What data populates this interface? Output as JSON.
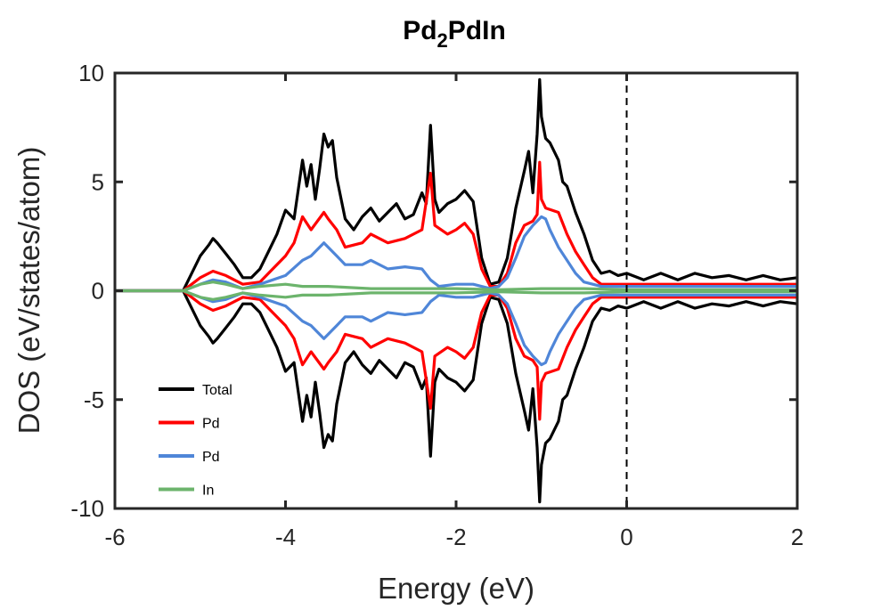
{
  "chart_data": {
    "type": "line",
    "title": {
      "main": "Pd",
      "subscript": "2",
      "suffix": "PdIn"
    },
    "xlabel": "Energy (eV)",
    "ylabel": "DOS (eV/states/atom)",
    "xlim": [
      -6,
      2
    ],
    "ylim": [
      -10,
      10
    ],
    "xticks": [
      -6,
      -4,
      -2,
      0,
      2
    ],
    "xtick_labels": [
      "-6",
      "-4",
      "-2",
      "0",
      "2"
    ],
    "yticks": [
      -10,
      -5,
      0,
      5,
      10
    ],
    "ytick_labels": [
      "-10",
      "-5",
      "0",
      "5",
      "10"
    ],
    "grid": false,
    "legend_position": "bottom-left",
    "reference_line": {
      "x": 0,
      "style": "dashed"
    },
    "mirrored": true,
    "series": [
      {
        "name": "Total",
        "color": "#000000",
        "points": [
          [
            -6.0,
            0.0
          ],
          [
            -5.2,
            0.0
          ],
          [
            -5.1,
            0.8
          ],
          [
            -5.0,
            1.6
          ],
          [
            -4.9,
            2.1
          ],
          [
            -4.85,
            2.4
          ],
          [
            -4.8,
            2.2
          ],
          [
            -4.7,
            1.7
          ],
          [
            -4.6,
            1.2
          ],
          [
            -4.5,
            0.6
          ],
          [
            -4.4,
            0.6
          ],
          [
            -4.3,
            1.0
          ],
          [
            -4.2,
            1.8
          ],
          [
            -4.1,
            2.6
          ],
          [
            -4.0,
            3.7
          ],
          [
            -3.9,
            3.3
          ],
          [
            -3.8,
            6.0
          ],
          [
            -3.75,
            4.8
          ],
          [
            -3.7,
            5.8
          ],
          [
            -3.65,
            4.2
          ],
          [
            -3.6,
            5.6
          ],
          [
            -3.55,
            7.2
          ],
          [
            -3.5,
            6.6
          ],
          [
            -3.45,
            6.9
          ],
          [
            -3.4,
            5.2
          ],
          [
            -3.3,
            3.3
          ],
          [
            -3.2,
            2.8
          ],
          [
            -3.1,
            3.4
          ],
          [
            -3.0,
            3.8
          ],
          [
            -2.9,
            3.2
          ],
          [
            -2.8,
            3.6
          ],
          [
            -2.7,
            4.0
          ],
          [
            -2.6,
            3.3
          ],
          [
            -2.5,
            3.5
          ],
          [
            -2.4,
            4.5
          ],
          [
            -2.35,
            4.0
          ],
          [
            -2.3,
            7.6
          ],
          [
            -2.25,
            4.2
          ],
          [
            -2.2,
            3.6
          ],
          [
            -2.1,
            4.0
          ],
          [
            -2.0,
            4.2
          ],
          [
            -1.9,
            4.6
          ],
          [
            -1.8,
            4.1
          ],
          [
            -1.7,
            1.5
          ],
          [
            -1.6,
            0.3
          ],
          [
            -1.5,
            0.4
          ],
          [
            -1.4,
            1.5
          ],
          [
            -1.3,
            3.8
          ],
          [
            -1.2,
            5.5
          ],
          [
            -1.15,
            6.4
          ],
          [
            -1.1,
            4.5
          ],
          [
            -1.05,
            7.2
          ],
          [
            -1.02,
            9.7
          ],
          [
            -1.0,
            8.0
          ],
          [
            -0.95,
            7.0
          ],
          [
            -0.9,
            6.8
          ],
          [
            -0.8,
            6.0
          ],
          [
            -0.75,
            5.0
          ],
          [
            -0.7,
            4.8
          ],
          [
            -0.6,
            3.6
          ],
          [
            -0.5,
            2.6
          ],
          [
            -0.4,
            1.4
          ],
          [
            -0.3,
            0.8
          ],
          [
            -0.2,
            0.9
          ],
          [
            -0.1,
            0.7
          ],
          [
            0.0,
            0.8
          ],
          [
            0.2,
            0.5
          ],
          [
            0.4,
            0.8
          ],
          [
            0.6,
            0.5
          ],
          [
            0.8,
            0.8
          ],
          [
            1.0,
            0.6
          ],
          [
            1.2,
            0.7
          ],
          [
            1.4,
            0.5
          ],
          [
            1.6,
            0.7
          ],
          [
            1.8,
            0.5
          ],
          [
            2.0,
            0.6
          ]
        ]
      },
      {
        "name": "Pd",
        "color": "#ff0000",
        "points": [
          [
            -6.0,
            0.0
          ],
          [
            -5.2,
            0.0
          ],
          [
            -5.0,
            0.6
          ],
          [
            -4.85,
            0.9
          ],
          [
            -4.7,
            0.7
          ],
          [
            -4.5,
            0.3
          ],
          [
            -4.3,
            0.4
          ],
          [
            -4.2,
            0.8
          ],
          [
            -4.0,
            1.6
          ],
          [
            -3.9,
            2.2
          ],
          [
            -3.8,
            3.4
          ],
          [
            -3.7,
            2.8
          ],
          [
            -3.55,
            3.6
          ],
          [
            -3.5,
            3.3
          ],
          [
            -3.4,
            2.8
          ],
          [
            -3.3,
            2.0
          ],
          [
            -3.1,
            2.2
          ],
          [
            -3.0,
            2.6
          ],
          [
            -2.8,
            2.2
          ],
          [
            -2.6,
            2.4
          ],
          [
            -2.4,
            2.8
          ],
          [
            -2.3,
            5.4
          ],
          [
            -2.25,
            3.0
          ],
          [
            -2.1,
            2.6
          ],
          [
            -2.0,
            2.8
          ],
          [
            -1.9,
            3.1
          ],
          [
            -1.8,
            2.6
          ],
          [
            -1.7,
            1.0
          ],
          [
            -1.6,
            0.2
          ],
          [
            -1.5,
            0.2
          ],
          [
            -1.4,
            0.8
          ],
          [
            -1.3,
            2.2
          ],
          [
            -1.2,
            3.0
          ],
          [
            -1.1,
            3.2
          ],
          [
            -1.05,
            3.5
          ],
          [
            -1.02,
            5.9
          ],
          [
            -1.0,
            4.2
          ],
          [
            -0.95,
            3.8
          ],
          [
            -0.8,
            3.6
          ],
          [
            -0.7,
            2.6
          ],
          [
            -0.6,
            1.8
          ],
          [
            -0.5,
            1.2
          ],
          [
            -0.4,
            0.6
          ],
          [
            -0.3,
            0.3
          ],
          [
            0.0,
            0.3
          ],
          [
            0.5,
            0.3
          ],
          [
            1.0,
            0.3
          ],
          [
            1.5,
            0.3
          ],
          [
            2.0,
            0.3
          ]
        ]
      },
      {
        "name": "Pd",
        "color": "#4f86d8",
        "points": [
          [
            -6.0,
            0.0
          ],
          [
            -5.2,
            0.0
          ],
          [
            -5.0,
            0.3
          ],
          [
            -4.85,
            0.5
          ],
          [
            -4.7,
            0.4
          ],
          [
            -4.5,
            0.1
          ],
          [
            -4.3,
            0.3
          ],
          [
            -4.0,
            0.7
          ],
          [
            -3.8,
            1.4
          ],
          [
            -3.7,
            1.6
          ],
          [
            -3.55,
            2.2
          ],
          [
            -3.5,
            2.0
          ],
          [
            -3.4,
            1.6
          ],
          [
            -3.3,
            1.2
          ],
          [
            -3.1,
            1.2
          ],
          [
            -3.0,
            1.4
          ],
          [
            -2.8,
            1.0
          ],
          [
            -2.6,
            1.1
          ],
          [
            -2.4,
            1.0
          ],
          [
            -2.3,
            0.5
          ],
          [
            -2.2,
            0.2
          ],
          [
            -2.0,
            0.3
          ],
          [
            -1.8,
            0.3
          ],
          [
            -1.6,
            0.1
          ],
          [
            -1.5,
            0.2
          ],
          [
            -1.4,
            0.6
          ],
          [
            -1.3,
            1.5
          ],
          [
            -1.2,
            2.5
          ],
          [
            -1.1,
            3.0
          ],
          [
            -1.0,
            3.4
          ],
          [
            -0.95,
            3.3
          ],
          [
            -0.9,
            2.8
          ],
          [
            -0.8,
            2.0
          ],
          [
            -0.7,
            1.4
          ],
          [
            -0.6,
            0.8
          ],
          [
            -0.5,
            0.4
          ],
          [
            -0.3,
            0.2
          ],
          [
            0.0,
            0.2
          ],
          [
            0.5,
            0.2
          ],
          [
            1.0,
            0.2
          ],
          [
            1.5,
            0.2
          ],
          [
            2.0,
            0.2
          ]
        ]
      },
      {
        "name": "In",
        "color": "#6cb46c",
        "points": [
          [
            -6.0,
            0.0
          ],
          [
            -5.2,
            0.0
          ],
          [
            -5.0,
            0.3
          ],
          [
            -4.85,
            0.4
          ],
          [
            -4.7,
            0.3
          ],
          [
            -4.5,
            0.1
          ],
          [
            -4.3,
            0.2
          ],
          [
            -4.0,
            0.3
          ],
          [
            -3.8,
            0.2
          ],
          [
            -3.5,
            0.2
          ],
          [
            -3.0,
            0.1
          ],
          [
            -2.5,
            0.1
          ],
          [
            -2.0,
            0.1
          ],
          [
            -1.5,
            0.05
          ],
          [
            -1.0,
            0.1
          ],
          [
            -0.5,
            0.1
          ],
          [
            0.0,
            0.05
          ],
          [
            0.5,
            0.05
          ],
          [
            1.0,
            0.05
          ],
          [
            1.5,
            0.05
          ],
          [
            2.0,
            0.05
          ]
        ]
      }
    ]
  }
}
